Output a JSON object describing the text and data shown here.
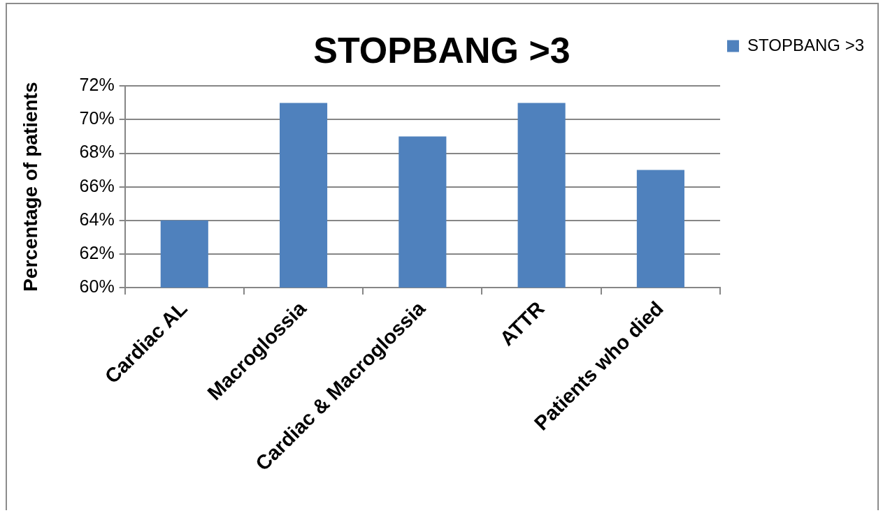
{
  "chart_data": {
    "type": "bar",
    "title": "STOPBANG >3",
    "ylabel": "Percentage of patients",
    "categories": [
      "Cardiac AL",
      "Macroglossia",
      "Cardiac & Macroglossia",
      "ATTR",
      "Patients who died"
    ],
    "series": [
      {
        "name": "STOPBANG >3",
        "color": "#4f81bd",
        "values": [
          64,
          71,
          69,
          71,
          67
        ]
      }
    ],
    "ylim": [
      60,
      72
    ],
    "yticks": [
      {
        "value": 60,
        "label": "60%"
      },
      {
        "value": 62,
        "label": "62%"
      },
      {
        "value": 64,
        "label": "64%"
      },
      {
        "value": 66,
        "label": "66%"
      },
      {
        "value": 68,
        "label": "68%"
      },
      {
        "value": 70,
        "label": "70%"
      },
      {
        "value": 72,
        "label": "72%"
      }
    ],
    "grid": "y",
    "legend": "top right"
  }
}
